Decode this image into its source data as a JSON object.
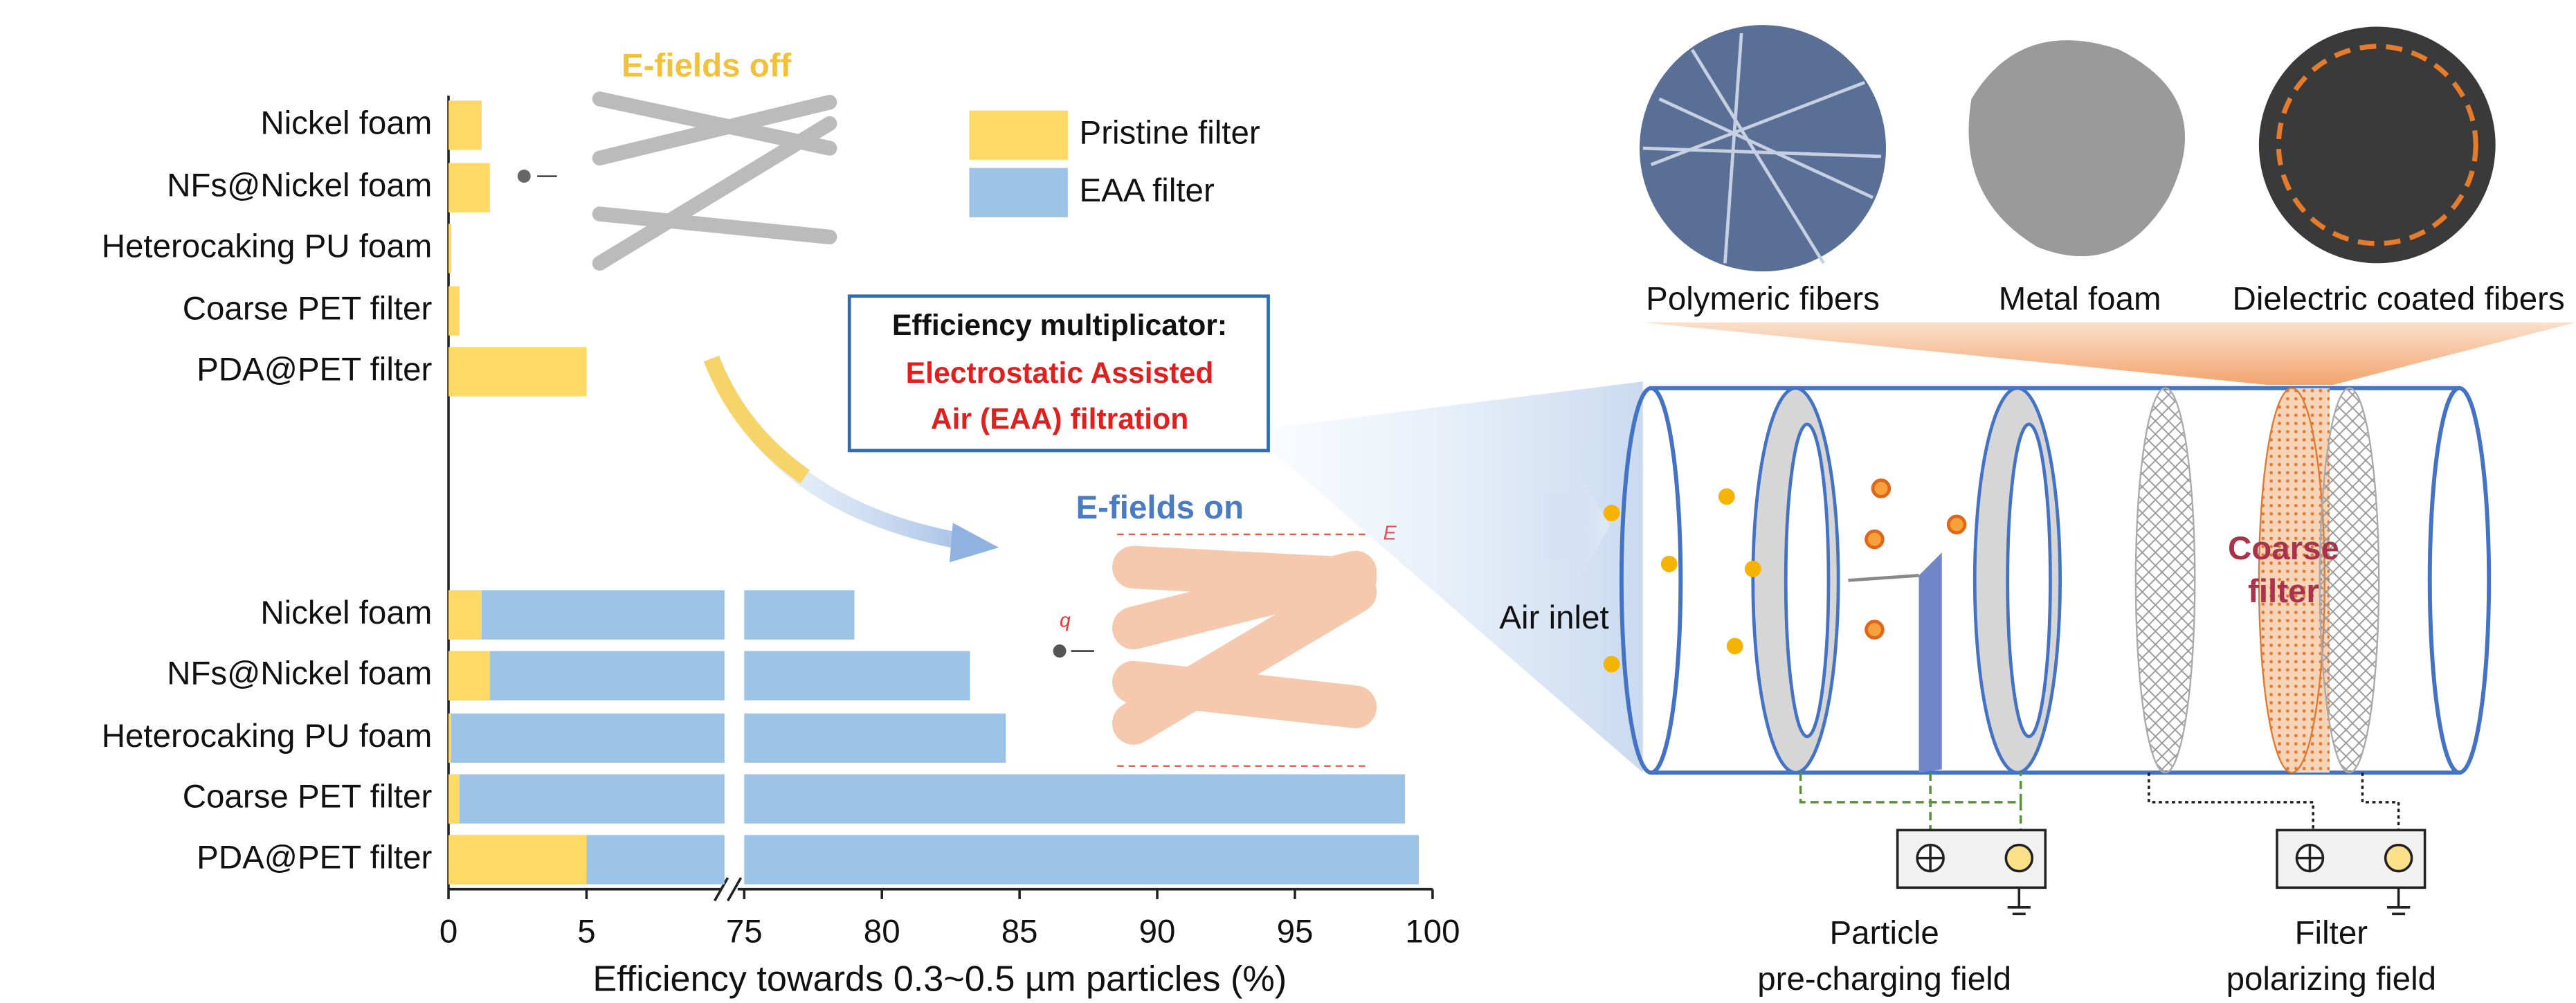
{
  "chart_data": {
    "type": "broken-hbar",
    "categories": [
      "Nickel foam",
      "NFs@Nickel foam",
      "Heterocaking PU foam",
      "Coarse PET filter",
      "PDA@PET filter"
    ],
    "series": [
      {
        "name": "Pristine filter",
        "color": "#ffd966",
        "values": [
          1.2,
          1.5,
          0.1,
          0.4,
          5
        ]
      },
      {
        "name": "EAA filter",
        "color": "#9dc3e6",
        "values": [
          79,
          83.2,
          84.5,
          99,
          99.5
        ]
      }
    ],
    "annotations": [
      "E-fields off",
      "E-fields on"
    ],
    "xlabel": "Efficiency towards 0.3~0.5 µm particles (%)",
    "xlim": [
      0,
      100
    ],
    "axis_break": [
      10,
      75
    ],
    "xticks": [
      0,
      5,
      75,
      80,
      85,
      90,
      95,
      100
    ],
    "legend": "top-right"
  },
  "diagram": {
    "materials": [
      "Polymeric fibers",
      "Metal foam",
      "Dielectric coated fibers"
    ],
    "box": {
      "title": "Efficiency multiplicator:",
      "lines": [
        "Electrostatic Assisted",
        "Air (EAA) filtration"
      ]
    },
    "inlet": "Air inlet",
    "filter": [
      "Coarse",
      "filter"
    ],
    "field_symbol": "E",
    "charge_symbol": "q",
    "fields": [
      [
        "Particle",
        "pre-charging field"
      ],
      [
        "Filter",
        "polarizing field"
      ]
    ]
  }
}
